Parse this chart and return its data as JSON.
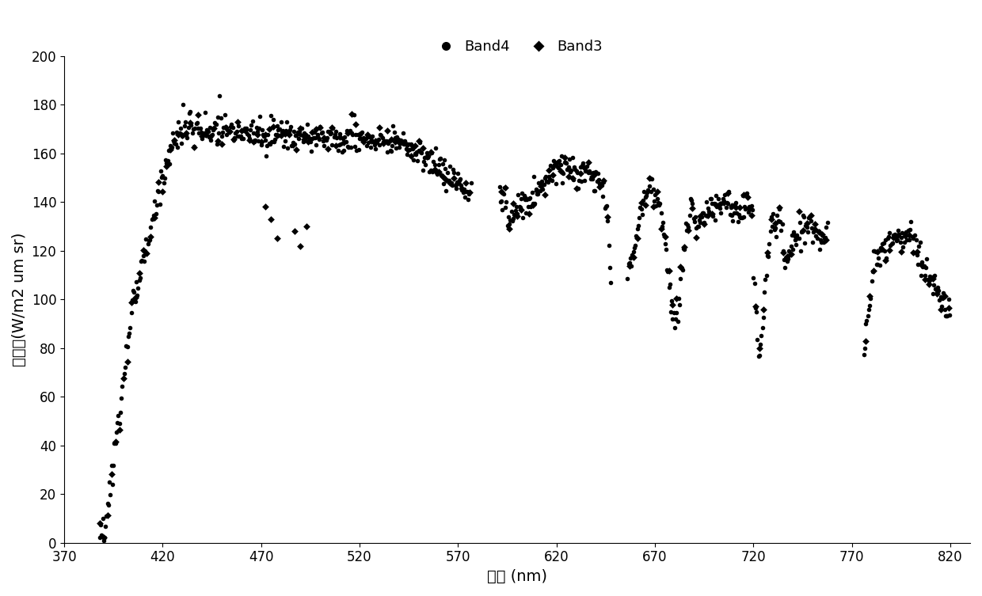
{
  "title": "",
  "xlabel": "波长 (nm)",
  "ylabel": "辐照度(W/m2 um sr)",
  "xlim": [
    370,
    830
  ],
  "ylim": [
    0,
    200
  ],
  "xticks": [
    370,
    420,
    470,
    520,
    570,
    620,
    670,
    720,
    770,
    820
  ],
  "yticks": [
    0,
    20,
    40,
    60,
    80,
    100,
    120,
    140,
    160,
    180,
    200
  ],
  "band4_color": "#000000",
  "band3_color": "#000000",
  "background_color": "#ffffff",
  "legend_band4": "Band4",
  "legend_band3": "Band3",
  "marker_size_band4": 16,
  "marker_size_band3": 20
}
